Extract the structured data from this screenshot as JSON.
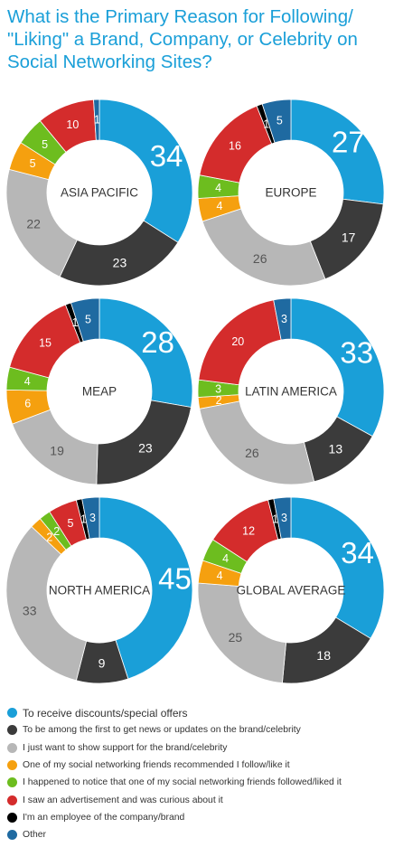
{
  "title": {
    "lines": [
      "What is the Primary Reason for Following/",
      "\"Liking\" a Brand, Company, or Celebrity on",
      "Social Networking Sites?"
    ]
  },
  "colors": {
    "discounts": "#1a9fd8",
    "news": "#3b3b3b",
    "support": "#b7b7b7",
    "recommended": "#f5a00f",
    "noticed": "#6dbd1f",
    "advertisement": "#d42c2c",
    "employee": "#000000",
    "other": "#1f6aa1"
  },
  "legend": [
    {
      "key": "discounts",
      "label": "To receive discounts/special offers"
    },
    {
      "key": "news",
      "label": "To be among the first to get news or updates on the brand/celebrity"
    },
    {
      "key": "support",
      "label": "I just want to show support for the brand/celebrity"
    },
    {
      "key": "recommended",
      "label": "One of my social networking friends recommended I follow/like it"
    },
    {
      "key": "noticed",
      "label": "I happened to notice that one of my social networking friends followed/liked it"
    },
    {
      "key": "advertisement",
      "label": "I saw an advertisement and was curious about it"
    },
    {
      "key": "employee",
      "label": "I'm an employee of the company/brand"
    },
    {
      "key": "other",
      "label": "Other"
    }
  ],
  "chart_data": [
    {
      "type": "pie",
      "title": "ASIA PACIFIC",
      "categories": [
        "discounts",
        "news",
        "support",
        "recommended",
        "noticed",
        "advertisement",
        "employee",
        "other"
      ],
      "values": [
        34,
        23,
        22,
        5,
        5,
        10,
        0,
        1
      ]
    },
    {
      "type": "pie",
      "title": "EUROPE",
      "categories": [
        "discounts",
        "news",
        "support",
        "recommended",
        "noticed",
        "advertisement",
        "employee",
        "other"
      ],
      "values": [
        27,
        17,
        26,
        4,
        4,
        16,
        1,
        5
      ]
    },
    {
      "type": "pie",
      "title": "MEAP",
      "categories": [
        "discounts",
        "news",
        "support",
        "recommended",
        "noticed",
        "advertisement",
        "employee",
        "other"
      ],
      "values": [
        28,
        23,
        19,
        6,
        4,
        15,
        1,
        5
      ]
    },
    {
      "type": "pie",
      "title": "LATIN AMERICA",
      "categories": [
        "discounts",
        "news",
        "support",
        "recommended",
        "noticed",
        "advertisement",
        "employee",
        "other"
      ],
      "values": [
        33,
        13,
        26,
        2,
        3,
        20,
        0,
        3
      ]
    },
    {
      "type": "pie",
      "title": "NORTH AMERICA",
      "categories": [
        "discounts",
        "news",
        "support",
        "recommended",
        "noticed",
        "advertisement",
        "employee",
        "other"
      ],
      "values": [
        45,
        9,
        33,
        2,
        2,
        5,
        1,
        3
      ]
    },
    {
      "type": "pie",
      "title": "GLOBAL AVERAGE",
      "categories": [
        "discounts",
        "news",
        "support",
        "recommended",
        "noticed",
        "advertisement",
        "employee",
        "other"
      ],
      "values": [
        34,
        18,
        25,
        4,
        4,
        12,
        1,
        3
      ]
    }
  ]
}
